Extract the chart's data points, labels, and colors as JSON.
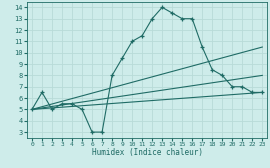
{
  "xlabel": "Humidex (Indice chaleur)",
  "xlim": [
    -0.5,
    23.5
  ],
  "ylim": [
    2.5,
    14.5
  ],
  "xticks": [
    0,
    1,
    2,
    3,
    4,
    5,
    6,
    7,
    8,
    9,
    10,
    11,
    12,
    13,
    14,
    15,
    16,
    17,
    18,
    19,
    20,
    21,
    22,
    23
  ],
  "yticks": [
    3,
    4,
    5,
    6,
    7,
    8,
    9,
    10,
    11,
    12,
    13,
    14
  ],
  "bg_color": "#ceecea",
  "line_color": "#1f6b65",
  "grid_color": "#b8dbd8",
  "main_line": {
    "x": [
      0,
      1,
      2,
      3,
      4,
      5,
      6,
      7,
      8,
      9,
      10,
      11,
      12,
      13,
      14,
      15,
      16,
      17,
      18,
      19,
      20,
      21,
      22,
      23
    ],
    "y": [
      5,
      6.5,
      5,
      5.5,
      5.5,
      5,
      3,
      3,
      8,
      9.5,
      11,
      11.5,
      13,
      14,
      13.5,
      13,
      13,
      10.5,
      8.5,
      8,
      7,
      7,
      6.5,
      6.5
    ]
  },
  "straight_lines": [
    {
      "x": [
        0,
        23
      ],
      "y": [
        5,
        10.5
      ]
    },
    {
      "x": [
        0,
        23
      ],
      "y": [
        5,
        8
      ]
    },
    {
      "x": [
        0,
        23
      ],
      "y": [
        5,
        6.5
      ]
    }
  ]
}
